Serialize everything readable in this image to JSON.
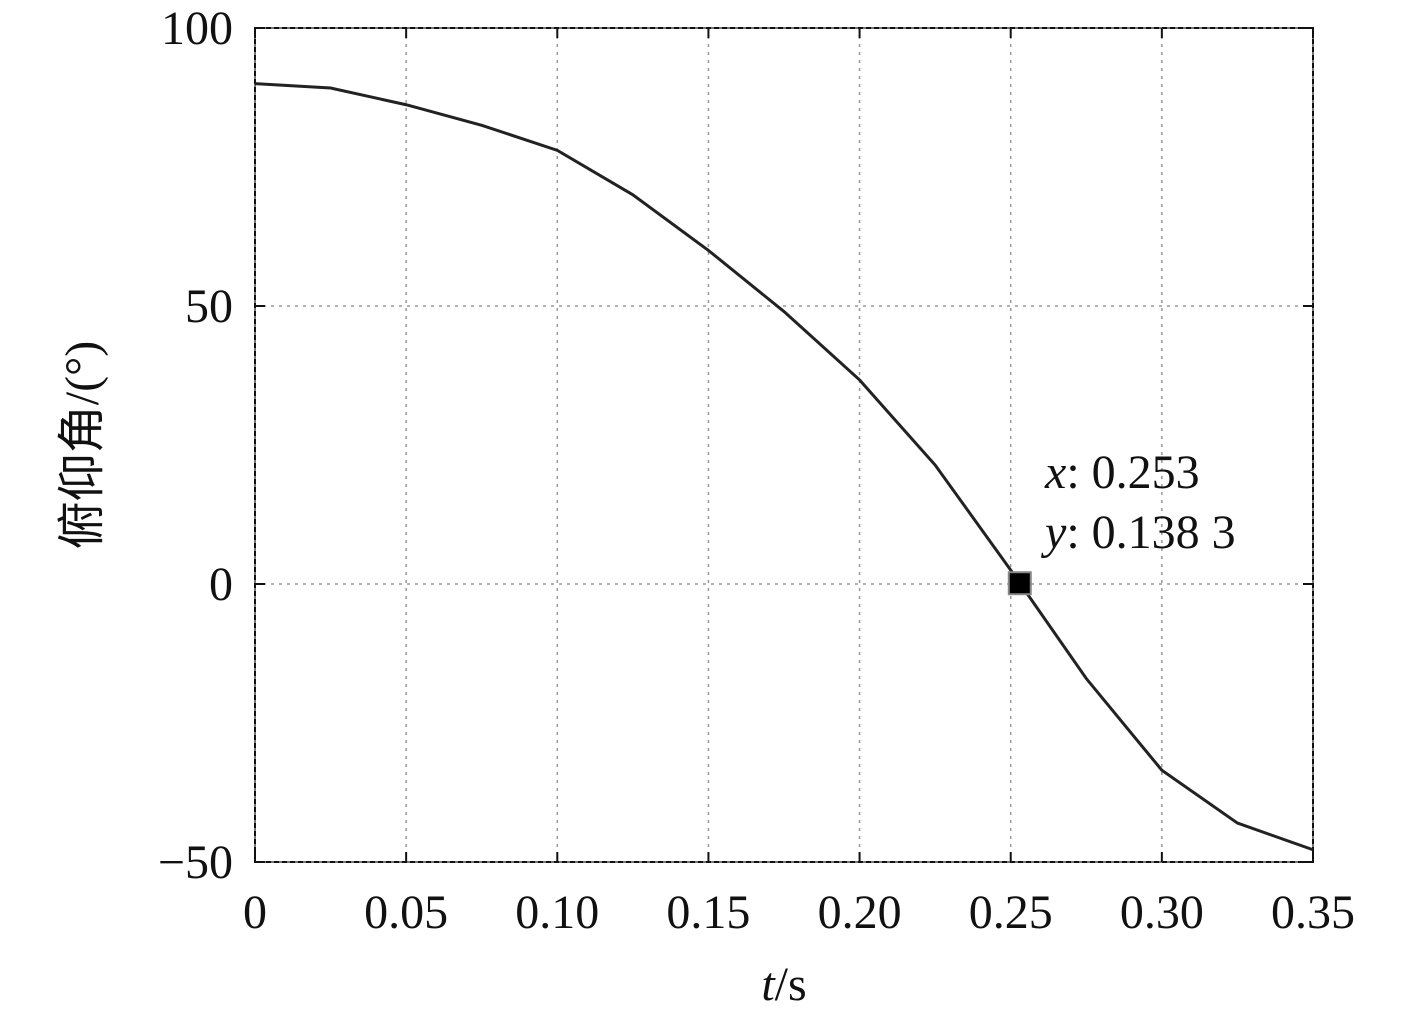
{
  "chart_data": {
    "type": "line",
    "xlabel": {
      "symbol": "t",
      "unit": "/s"
    },
    "ylabel": "俯仰角/(°)",
    "x": [
      0,
      0.025,
      0.05,
      0.075,
      0.1,
      0.125,
      0.15,
      0.175,
      0.2,
      0.225,
      0.25,
      0.275,
      0.3,
      0.325,
      0.35
    ],
    "series": [
      {
        "color": "#222222",
        "values": [
          90,
          89.2,
          86.2,
          82.5,
          78,
          70,
          60,
          49,
          36.7,
          21.4,
          2.5,
          -17,
          -33.5,
          -43,
          -47.8
        ]
      }
    ],
    "xlim": [
      0,
      0.35
    ],
    "ylim": [
      -50,
      100
    ],
    "xticks": [
      0,
      0.05,
      {
        "value": 0.1,
        "label": "0.10"
      },
      0.15,
      {
        "value": 0.2,
        "label": "0.20"
      },
      0.25,
      {
        "value": 0.3,
        "label": "0.30"
      },
      0.35
    ],
    "yticks": [
      {
        "value": -50,
        "label": "−50"
      },
      0,
      50,
      100
    ],
    "grid": true,
    "annotation": {
      "x": 0.253,
      "y": 0.1383,
      "x_name": "x",
      "x_text": ": 0.253",
      "y_name": "y",
      "y_text": ": 0.138 3"
    }
  }
}
